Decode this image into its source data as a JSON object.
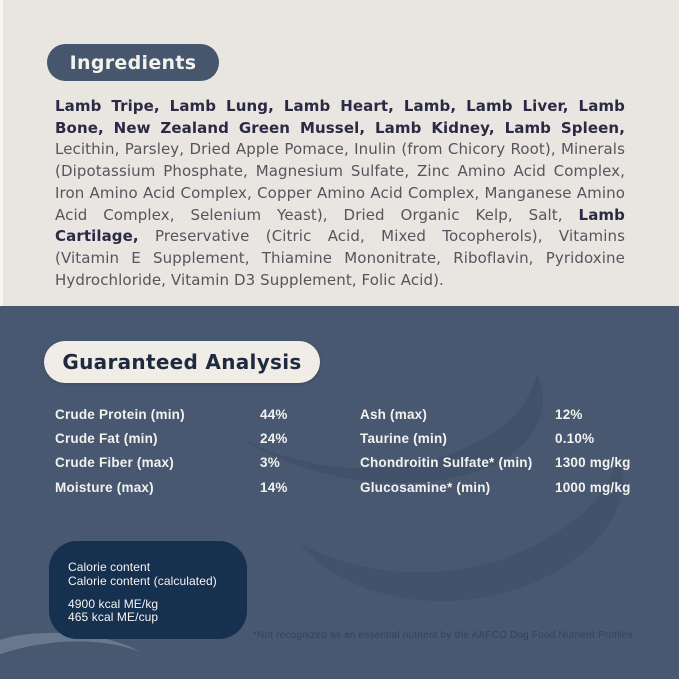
{
  "colors": {
    "cream_bg": "#e9e5e0",
    "slate_bg": "#475870",
    "pill_dark": "#45566d",
    "pill_light": "#f0ede7",
    "calorie_box_bg": "#16304f",
    "wave_dark": "#3d4e67",
    "ingredient_bold_text": "#2a2a44",
    "ingredient_regular_text": "#55555e",
    "analysis_text": "#f3f2ef",
    "footnote_text": "#2e4466"
  },
  "ingredients": {
    "title": "Ingredients",
    "segments": [
      {
        "bold": true,
        "text": "Lamb Tripe, Lamb Lung, Lamb Heart, Lamb, Lamb Liver, Lamb Bone, New Zealand Green Mussel, Lamb Kidney, Lamb Spleen,"
      },
      {
        "bold": false,
        "text": " Lecithin, Parsley, Dried Apple Pomace, Inulin (from Chicory Root), Minerals (Dipotassium Phosphate, Magnesium Sulfate, Zinc Amino Acid Complex, Iron Amino Acid Complex, Copper Amino Acid Complex, Manganese Amino Acid Complex, Selenium Yeast), Dried Organic Kelp, Salt, "
      },
      {
        "bold": true,
        "text": "Lamb Cartilage,"
      },
      {
        "bold": false,
        "text": " Preservative (Citric Acid, Mixed Tocopherols), Vitamins (Vitamin E Supplement, Thiamine Mononitrate, Riboflavin, Pyridoxine Hydrochloride, Vitamin D3 Supplement, Folic Acid)."
      }
    ]
  },
  "guaranteed_analysis": {
    "title": "Guaranteed Analysis",
    "columns": [
      [
        {
          "label": "Crude Protein (min)",
          "value": "44%"
        },
        {
          "label": "Crude Fat (min)",
          "value": "24%"
        },
        {
          "label": "Crude Fiber (max)",
          "value": "3%"
        },
        {
          "label": "Moisture (max)",
          "value": "14%"
        }
      ],
      [
        {
          "label": "Ash (max)",
          "value": "12%"
        },
        {
          "label": "Taurine (min)",
          "value": "0.10%"
        },
        {
          "label": "Chondroitin Sulfate* (min)",
          "value": "1300 mg/kg"
        },
        {
          "label": "Glucosamine* (min)",
          "value": "1000 mg/kg"
        }
      ]
    ],
    "footnote": "*Not recognized as an essential nutrient by the AAFCO Dog Food Nutrient Profiles"
  },
  "calorie_content": {
    "heading_lines": [
      "Calorie content",
      "Calorie content (calculated)"
    ],
    "value_lines": [
      "4900 kcal ME/kg",
      "465 kcal ME/cup"
    ]
  }
}
